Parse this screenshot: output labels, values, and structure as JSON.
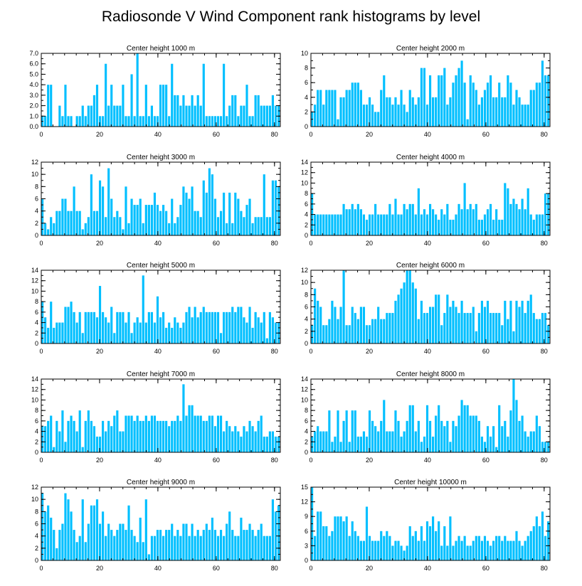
{
  "figure_title": "Radiosonde V Wind Component rank histograms by level",
  "colors": {
    "bar": "#00BFFF",
    "frame": "#000000"
  },
  "chart_data": [
    {
      "type": "bar",
      "title": "Center height 1000 m",
      "ylim": [
        0,
        7
      ],
      "yticks": [
        "0.0",
        "1.0",
        "2.0",
        "3.0",
        "4.0",
        "5.0",
        "6.0",
        "7.0"
      ],
      "xlim": [
        0,
        82
      ],
      "xticks": [
        "0",
        "20",
        "40",
        "60",
        "80"
      ],
      "values": [
        1,
        1,
        4,
        4,
        0,
        0,
        2,
        1,
        4,
        1,
        1,
        0,
        1,
        1,
        2,
        1,
        2,
        2,
        3,
        4,
        1,
        1,
        6,
        2,
        4,
        2,
        2,
        2,
        4,
        1,
        1,
        5,
        1,
        7,
        1,
        1,
        4,
        1,
        2,
        1,
        1,
        4,
        4,
        4,
        1,
        6,
        3,
        3,
        2,
        3,
        2,
        2,
        3,
        2,
        3,
        2,
        6,
        1,
        1,
        1,
        1,
        1,
        1,
        6,
        1,
        2,
        3,
        3,
        1,
        2,
        2,
        4,
        1,
        1,
        3,
        3,
        2,
        2,
        2,
        2,
        3,
        2,
        2
      ]
    },
    {
      "type": "bar",
      "title": "Center height 2000 m",
      "ylim": [
        0,
        10
      ],
      "yticks": [
        "0",
        "2",
        "4",
        "6",
        "8",
        "10"
      ],
      "xlim": [
        0,
        82
      ],
      "xticks": [
        "0",
        "20",
        "40",
        "60",
        "80"
      ],
      "values": [
        2,
        3,
        5,
        5,
        3,
        5,
        5,
        5,
        5,
        1,
        4,
        4,
        5,
        5,
        6,
        6,
        6,
        5,
        3,
        3,
        4,
        3,
        2,
        2,
        5,
        7,
        4,
        4,
        3,
        4,
        3,
        5,
        3,
        2,
        5,
        4,
        3,
        4,
        8,
        8,
        3,
        7,
        4,
        4,
        7,
        7,
        8,
        3,
        4,
        6,
        7,
        8,
        9,
        6,
        1,
        7,
        6,
        5,
        3,
        4,
        5,
        6,
        7,
        4,
        4,
        6,
        4,
        4,
        7,
        6,
        3,
        5,
        4,
        3,
        3,
        3,
        5,
        5,
        6,
        6,
        9,
        7,
        7
      ]
    },
    {
      "type": "bar",
      "title": "Center height 3000 m",
      "ylim": [
        0,
        12
      ],
      "yticks": [
        "0",
        "2",
        "4",
        "6",
        "8",
        "10",
        "12"
      ],
      "xlim": [
        0,
        82
      ],
      "xticks": [
        "0",
        "20",
        "40",
        "60",
        "80"
      ],
      "values": [
        6,
        2,
        1,
        3,
        2,
        4,
        4,
        6,
        6,
        4,
        4,
        8,
        4,
        4,
        1,
        2,
        3,
        10,
        4,
        4,
        9,
        8,
        3,
        11,
        6,
        3,
        4,
        3,
        1,
        8,
        2,
        6,
        5,
        5,
        6,
        2,
        5,
        5,
        5,
        7,
        5,
        4,
        5,
        4,
        2,
        6,
        2,
        3,
        5,
        8,
        7,
        6,
        8,
        4,
        4,
        3,
        9,
        7,
        11,
        10,
        6,
        3,
        4,
        7,
        2,
        7,
        2,
        7,
        6,
        4,
        3,
        5,
        6,
        2,
        3,
        3,
        3,
        10,
        3,
        3,
        9,
        9,
        8
      ]
    },
    {
      "type": "bar",
      "title": "Center height 4000 m",
      "ylim": [
        0,
        14
      ],
      "yticks": [
        "0",
        "2",
        "4",
        "6",
        "8",
        "10",
        "12",
        "14"
      ],
      "xlim": [
        0,
        82
      ],
      "xticks": [
        "0",
        "20",
        "40",
        "60",
        "80"
      ],
      "values": [
        8,
        4,
        4,
        4,
        4,
        4,
        4,
        4,
        4,
        4,
        4,
        6,
        5,
        5,
        6,
        5,
        6,
        5,
        4,
        3,
        4,
        4,
        6,
        4,
        4,
        4,
        4,
        6,
        4,
        7,
        4,
        4,
        6,
        5,
        6,
        6,
        4,
        9,
        4,
        5,
        4,
        6,
        5,
        4,
        3,
        5,
        4,
        6,
        3,
        3,
        4,
        6,
        5,
        10,
        5,
        6,
        5,
        6,
        3,
        3,
        4,
        5,
        6,
        3,
        5,
        3,
        3,
        10,
        9,
        6,
        7,
        6,
        5,
        7,
        5,
        9,
        4,
        3,
        4,
        4,
        4,
        8,
        8
      ]
    },
    {
      "type": "bar",
      "title": "Center height 5000 m",
      "ylim": [
        0,
        14
      ],
      "yticks": [
        "0",
        "2",
        "4",
        "6",
        "8",
        "10",
        "12",
        "14"
      ],
      "xlim": [
        0,
        82
      ],
      "xticks": [
        "0",
        "20",
        "40",
        "60",
        "80"
      ],
      "values": [
        8,
        5,
        3,
        8,
        3,
        4,
        4,
        4,
        7,
        7,
        8,
        6,
        4,
        6,
        2,
        6,
        6,
        6,
        6,
        5,
        11,
        6,
        5,
        4,
        7,
        2,
        6,
        6,
        6,
        4,
        6,
        2,
        4,
        5,
        4,
        13,
        4,
        6,
        6,
        4,
        9,
        5,
        6,
        3,
        4,
        3,
        5,
        4,
        3,
        4,
        6,
        7,
        5,
        7,
        5,
        6,
        7,
        6,
        6,
        6,
        6,
        6,
        2,
        6,
        6,
        6,
        7,
        6,
        7,
        7,
        5,
        4,
        7,
        3,
        6,
        5,
        4,
        6,
        1,
        6,
        5,
        4,
        4
      ]
    },
    {
      "type": "bar",
      "title": "Center height 6000 m",
      "ylim": [
        0,
        12
      ],
      "yticks": [
        "0",
        "2",
        "4",
        "6",
        "8",
        "10",
        "12"
      ],
      "xlim": [
        0,
        82
      ],
      "xticks": [
        "0",
        "20",
        "40",
        "60",
        "80"
      ],
      "values": [
        3,
        9,
        7,
        6,
        3,
        3,
        4,
        7,
        6,
        4,
        6,
        12,
        3,
        3,
        6,
        5,
        4,
        6,
        6,
        3,
        3,
        4,
        4,
        6,
        4,
        4,
        5,
        5,
        5,
        7,
        8,
        9,
        10,
        12,
        12,
        10,
        9,
        4,
        7,
        5,
        5,
        6,
        6,
        8,
        8,
        3,
        5,
        8,
        6,
        7,
        6,
        5,
        7,
        5,
        5,
        5,
        6,
        2,
        5,
        7,
        6,
        7,
        5,
        5,
        5,
        5,
        3,
        7,
        4,
        7,
        2,
        7,
        6,
        7,
        5,
        7,
        8,
        5,
        4,
        4,
        5,
        5,
        3
      ]
    },
    {
      "type": "bar",
      "title": "Center height 7000 m",
      "ylim": [
        0,
        14
      ],
      "yticks": [
        "0",
        "2",
        "4",
        "6",
        "8",
        "10",
        "12",
        "14"
      ],
      "xlim": [
        0,
        82
      ],
      "xticks": [
        "0",
        "20",
        "40",
        "60",
        "80"
      ],
      "values": [
        5,
        5,
        6,
        7,
        1,
        6,
        4,
        8,
        2,
        6,
        7,
        6,
        4,
        8,
        1,
        6,
        8,
        6,
        5,
        3,
        3,
        6,
        4,
        6,
        5,
        7,
        8,
        4,
        4,
        7,
        7,
        7,
        6,
        7,
        6,
        6,
        7,
        6,
        7,
        7,
        6,
        6,
        6,
        6,
        5,
        6,
        6,
        7,
        6,
        13,
        7,
        9,
        9,
        7,
        7,
        7,
        6,
        6,
        7,
        7,
        5,
        7,
        7,
        4,
        6,
        5,
        4,
        5,
        4,
        3,
        5,
        4,
        6,
        5,
        4,
        6,
        7,
        3,
        3,
        4,
        4,
        3,
        3
      ]
    },
    {
      "type": "bar",
      "title": "Center height 8000 m",
      "ylim": [
        0,
        14
      ],
      "yticks": [
        "0",
        "2",
        "4",
        "6",
        "8",
        "10",
        "12",
        "14"
      ],
      "xlim": [
        0,
        82
      ],
      "xticks": [
        "0",
        "20",
        "40",
        "60",
        "80"
      ],
      "values": [
        3,
        4,
        5,
        4,
        4,
        4,
        8,
        2,
        3,
        8,
        2,
        6,
        8,
        2,
        8,
        8,
        3,
        3,
        4,
        3,
        8,
        6,
        5,
        4,
        6,
        10,
        4,
        4,
        4,
        8,
        6,
        3,
        4,
        6,
        9,
        9,
        4,
        6,
        2,
        3,
        9,
        6,
        3,
        7,
        9,
        6,
        5,
        6,
        2,
        6,
        5,
        7,
        10,
        9,
        9,
        7,
        7,
        7,
        6,
        3,
        2,
        5,
        3,
        5,
        1,
        9,
        5,
        6,
        3,
        8,
        14,
        10,
        6,
        7,
        4,
        3,
        4,
        4,
        7,
        5,
        2,
        2,
        2
      ]
    },
    {
      "type": "bar",
      "title": "Center height 9000 m",
      "ylim": [
        0,
        12
      ],
      "yticks": [
        "0",
        "2",
        "4",
        "6",
        "8",
        "10",
        "12"
      ],
      "xlim": [
        0,
        82
      ],
      "xticks": [
        "0",
        "20",
        "40",
        "60",
        "80"
      ],
      "values": [
        11,
        8,
        9,
        7,
        5,
        2,
        5,
        6,
        11,
        10,
        8,
        5,
        3,
        4,
        10,
        3,
        6,
        9,
        9,
        10,
        6,
        8,
        4,
        6,
        5,
        4,
        5,
        6,
        6,
        5,
        9,
        5,
        4,
        3,
        7,
        3,
        10,
        1,
        4,
        4,
        5,
        5,
        4,
        5,
        5,
        6,
        4,
        5,
        4,
        6,
        6,
        4,
        6,
        4,
        5,
        4,
        5,
        6,
        5,
        7,
        5,
        4,
        5,
        4,
        6,
        8,
        5,
        4,
        4,
        7,
        5,
        5,
        6,
        5,
        4,
        5,
        6,
        4,
        4,
        4,
        10,
        8,
        9
      ]
    },
    {
      "type": "bar",
      "title": "Center height 10000 m",
      "ylim": [
        0,
        15
      ],
      "yticks": [
        "0",
        "3",
        "6",
        "9",
        "12",
        "15"
      ],
      "xlim": [
        0,
        82
      ],
      "xticks": [
        "0",
        "20",
        "40",
        "60",
        "80"
      ],
      "values": [
        15,
        5,
        10,
        10,
        7,
        7,
        5,
        6,
        9,
        9,
        9,
        8,
        9,
        5,
        8,
        6,
        5,
        4,
        4,
        11,
        5,
        4,
        4,
        4,
        6,
        5,
        6,
        5,
        3,
        4,
        4,
        3,
        2,
        3,
        7,
        5,
        6,
        4,
        7,
        4,
        8,
        7,
        9,
        6,
        8,
        3,
        7,
        3,
        9,
        3,
        4,
        5,
        4,
        5,
        3,
        3,
        4,
        5,
        5,
        4,
        5,
        4,
        3,
        4,
        5,
        5,
        4,
        5,
        4,
        4,
        4,
        6,
        4,
        3,
        4,
        5,
        6,
        7,
        9,
        7,
        10,
        5,
        8
      ]
    }
  ]
}
